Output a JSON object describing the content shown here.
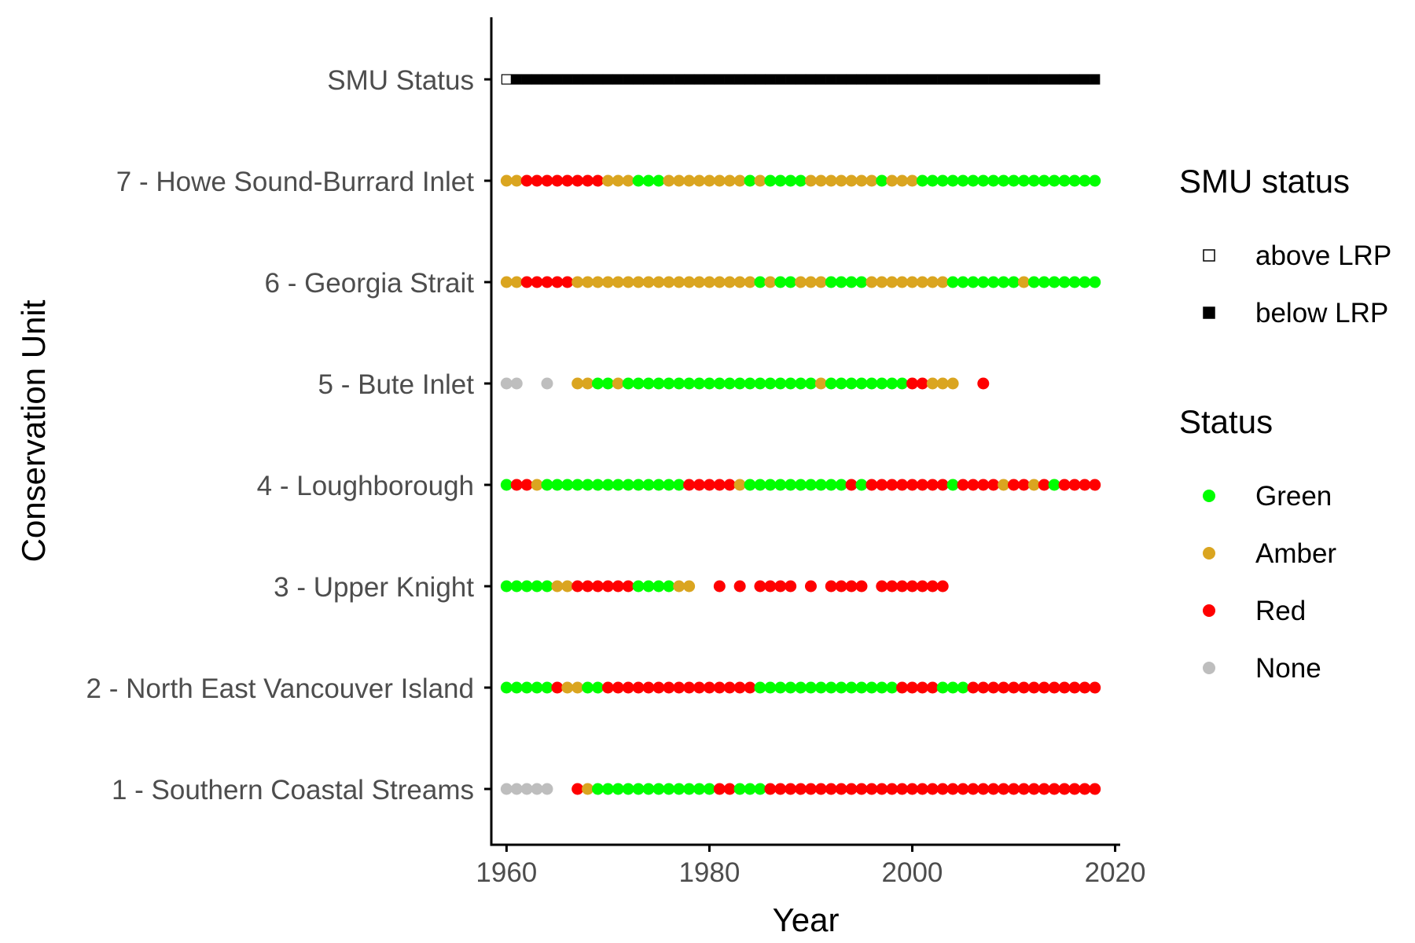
{
  "chart_data": {
    "type": "scatter",
    "xlabel": "Year",
    "ylabel": "Conservation Unit",
    "xlim": [
      1958.5,
      2020.5
    ],
    "x_ticks": [
      1960,
      1980,
      2000,
      2020
    ],
    "x_tick_labels": [
      "1960",
      "1980",
      "2000",
      "2020"
    ],
    "grid": false,
    "legend_position": "right",
    "colors": {
      "Green": "#00ff00",
      "Amber": "#daa520",
      "Red": "#ff0000",
      "None": "#bebebe",
      "above LRP": "#ffffff",
      "below LRP": "#000000",
      "axis": "#000000"
    },
    "categories": [
      "1 - Southern Coastal Streams",
      "2 - North East Vancouver Island",
      "3 - Upper Knight",
      "4 - Loughborough",
      "5 - Bute Inlet",
      "6 - Georgia Strait",
      "7 - Howe Sound-Burrard Inlet",
      "SMU Status"
    ],
    "cu_status": [
      {
        "cu": "1 - Southern Coastal Streams",
        "runs": [
          {
            "from": 1960,
            "to": 1964,
            "status": "None"
          },
          {
            "from": 1967,
            "to": 1967,
            "status": "Red"
          },
          {
            "from": 1968,
            "to": 1968,
            "status": "Amber"
          },
          {
            "from": 1969,
            "to": 1980,
            "status": "Green"
          },
          {
            "from": 1981,
            "to": 1982,
            "status": "Red"
          },
          {
            "from": 1983,
            "to": 1985,
            "status": "Green"
          },
          {
            "from": 1986,
            "to": 2018,
            "status": "Red"
          }
        ]
      },
      {
        "cu": "2 - North East Vancouver Island",
        "runs": [
          {
            "from": 1960,
            "to": 1964,
            "status": "Green"
          },
          {
            "from": 1965,
            "to": 1965,
            "status": "Red"
          },
          {
            "from": 1966,
            "to": 1967,
            "status": "Amber"
          },
          {
            "from": 1968,
            "to": 1969,
            "status": "Green"
          },
          {
            "from": 1970,
            "to": 1984,
            "status": "Red"
          },
          {
            "from": 1985,
            "to": 1998,
            "status": "Green"
          },
          {
            "from": 1999,
            "to": 2002,
            "status": "Red"
          },
          {
            "from": 2003,
            "to": 2005,
            "status": "Green"
          },
          {
            "from": 2006,
            "to": 2018,
            "status": "Red"
          }
        ]
      },
      {
        "cu": "3 - Upper Knight",
        "runs": [
          {
            "from": 1960,
            "to": 1964,
            "status": "Green"
          },
          {
            "from": 1965,
            "to": 1966,
            "status": "Amber"
          },
          {
            "from": 1967,
            "to": 1972,
            "status": "Red"
          },
          {
            "from": 1973,
            "to": 1976,
            "status": "Green"
          },
          {
            "from": 1977,
            "to": 1978,
            "status": "Amber"
          },
          {
            "from": 1981,
            "to": 1981,
            "status": "Red"
          },
          {
            "from": 1983,
            "to": 1983,
            "status": "Red"
          },
          {
            "from": 1985,
            "to": 1988,
            "status": "Red"
          },
          {
            "from": 1990,
            "to": 1990,
            "status": "Red"
          },
          {
            "from": 1992,
            "to": 1995,
            "status": "Red"
          },
          {
            "from": 1997,
            "to": 2003,
            "status": "Red"
          }
        ]
      },
      {
        "cu": "4 - Loughborough",
        "runs": [
          {
            "from": 1960,
            "to": 1960,
            "status": "Green"
          },
          {
            "from": 1961,
            "to": 1962,
            "status": "Red"
          },
          {
            "from": 1963,
            "to": 1963,
            "status": "Amber"
          },
          {
            "from": 1964,
            "to": 1977,
            "status": "Green"
          },
          {
            "from": 1978,
            "to": 1982,
            "status": "Red"
          },
          {
            "from": 1983,
            "to": 1983,
            "status": "Amber"
          },
          {
            "from": 1984,
            "to": 1993,
            "status": "Green"
          },
          {
            "from": 1994,
            "to": 1994,
            "status": "Red"
          },
          {
            "from": 1995,
            "to": 1995,
            "status": "Green"
          },
          {
            "from": 1996,
            "to": 2003,
            "status": "Red"
          },
          {
            "from": 2004,
            "to": 2004,
            "status": "Green"
          },
          {
            "from": 2005,
            "to": 2008,
            "status": "Red"
          },
          {
            "from": 2009,
            "to": 2009,
            "status": "Amber"
          },
          {
            "from": 2010,
            "to": 2011,
            "status": "Red"
          },
          {
            "from": 2012,
            "to": 2012,
            "status": "Amber"
          },
          {
            "from": 2013,
            "to": 2013,
            "status": "Red"
          },
          {
            "from": 2014,
            "to": 2014,
            "status": "Green"
          },
          {
            "from": 2015,
            "to": 2018,
            "status": "Red"
          }
        ]
      },
      {
        "cu": "5 - Bute Inlet",
        "runs": [
          {
            "from": 1960,
            "to": 1961,
            "status": "None"
          },
          {
            "from": 1964,
            "to": 1964,
            "status": "None"
          },
          {
            "from": 1967,
            "to": 1968,
            "status": "Amber"
          },
          {
            "from": 1969,
            "to": 1970,
            "status": "Green"
          },
          {
            "from": 1971,
            "to": 1971,
            "status": "Amber"
          },
          {
            "from": 1972,
            "to": 1990,
            "status": "Green"
          },
          {
            "from": 1991,
            "to": 1991,
            "status": "Amber"
          },
          {
            "from": 1992,
            "to": 1999,
            "status": "Green"
          },
          {
            "from": 2000,
            "to": 2001,
            "status": "Red"
          },
          {
            "from": 2002,
            "to": 2004,
            "status": "Amber"
          },
          {
            "from": 2007,
            "to": 2007,
            "status": "Red"
          }
        ]
      },
      {
        "cu": "6 - Georgia Strait",
        "runs": [
          {
            "from": 1960,
            "to": 1961,
            "status": "Amber"
          },
          {
            "from": 1962,
            "to": 1966,
            "status": "Red"
          },
          {
            "from": 1967,
            "to": 1984,
            "status": "Amber"
          },
          {
            "from": 1985,
            "to": 1985,
            "status": "Green"
          },
          {
            "from": 1986,
            "to": 1986,
            "status": "Amber"
          },
          {
            "from": 1987,
            "to": 1988,
            "status": "Green"
          },
          {
            "from": 1989,
            "to": 1991,
            "status": "Amber"
          },
          {
            "from": 1992,
            "to": 1995,
            "status": "Green"
          },
          {
            "from": 1996,
            "to": 2003,
            "status": "Amber"
          },
          {
            "from": 2004,
            "to": 2010,
            "status": "Green"
          },
          {
            "from": 2011,
            "to": 2011,
            "status": "Amber"
          },
          {
            "from": 2012,
            "to": 2018,
            "status": "Green"
          }
        ]
      },
      {
        "cu": "7 - Howe Sound-Burrard Inlet",
        "runs": [
          {
            "from": 1960,
            "to": 1961,
            "status": "Amber"
          },
          {
            "from": 1962,
            "to": 1969,
            "status": "Red"
          },
          {
            "from": 1970,
            "to": 1972,
            "status": "Amber"
          },
          {
            "from": 1973,
            "to": 1975,
            "status": "Green"
          },
          {
            "from": 1976,
            "to": 1983,
            "status": "Amber"
          },
          {
            "from": 1984,
            "to": 1984,
            "status": "Green"
          },
          {
            "from": 1985,
            "to": 1985,
            "status": "Amber"
          },
          {
            "from": 1986,
            "to": 1989,
            "status": "Green"
          },
          {
            "from": 1990,
            "to": 1996,
            "status": "Amber"
          },
          {
            "from": 1997,
            "to": 1997,
            "status": "Green"
          },
          {
            "from": 1998,
            "to": 2000,
            "status": "Amber"
          },
          {
            "from": 2001,
            "to": 2018,
            "status": "Green"
          }
        ]
      }
    ],
    "smu_status": {
      "row": "SMU Status",
      "runs": [
        {
          "from": 1960,
          "to": 1960,
          "status": "above LRP"
        },
        {
          "from": 1961,
          "to": 2018,
          "status": "below LRP"
        }
      ]
    },
    "legends": [
      {
        "title": "SMU status",
        "shape": "square",
        "items": [
          {
            "label": "above LRP",
            "status": "above LRP"
          },
          {
            "label": "below LRP",
            "status": "below LRP"
          }
        ]
      },
      {
        "title": "Status",
        "shape": "circle",
        "items": [
          {
            "label": "Green",
            "status": "Green"
          },
          {
            "label": "Amber",
            "status": "Amber"
          },
          {
            "label": "Red",
            "status": "Red"
          },
          {
            "label": "None",
            "status": "None"
          }
        ]
      }
    ]
  }
}
